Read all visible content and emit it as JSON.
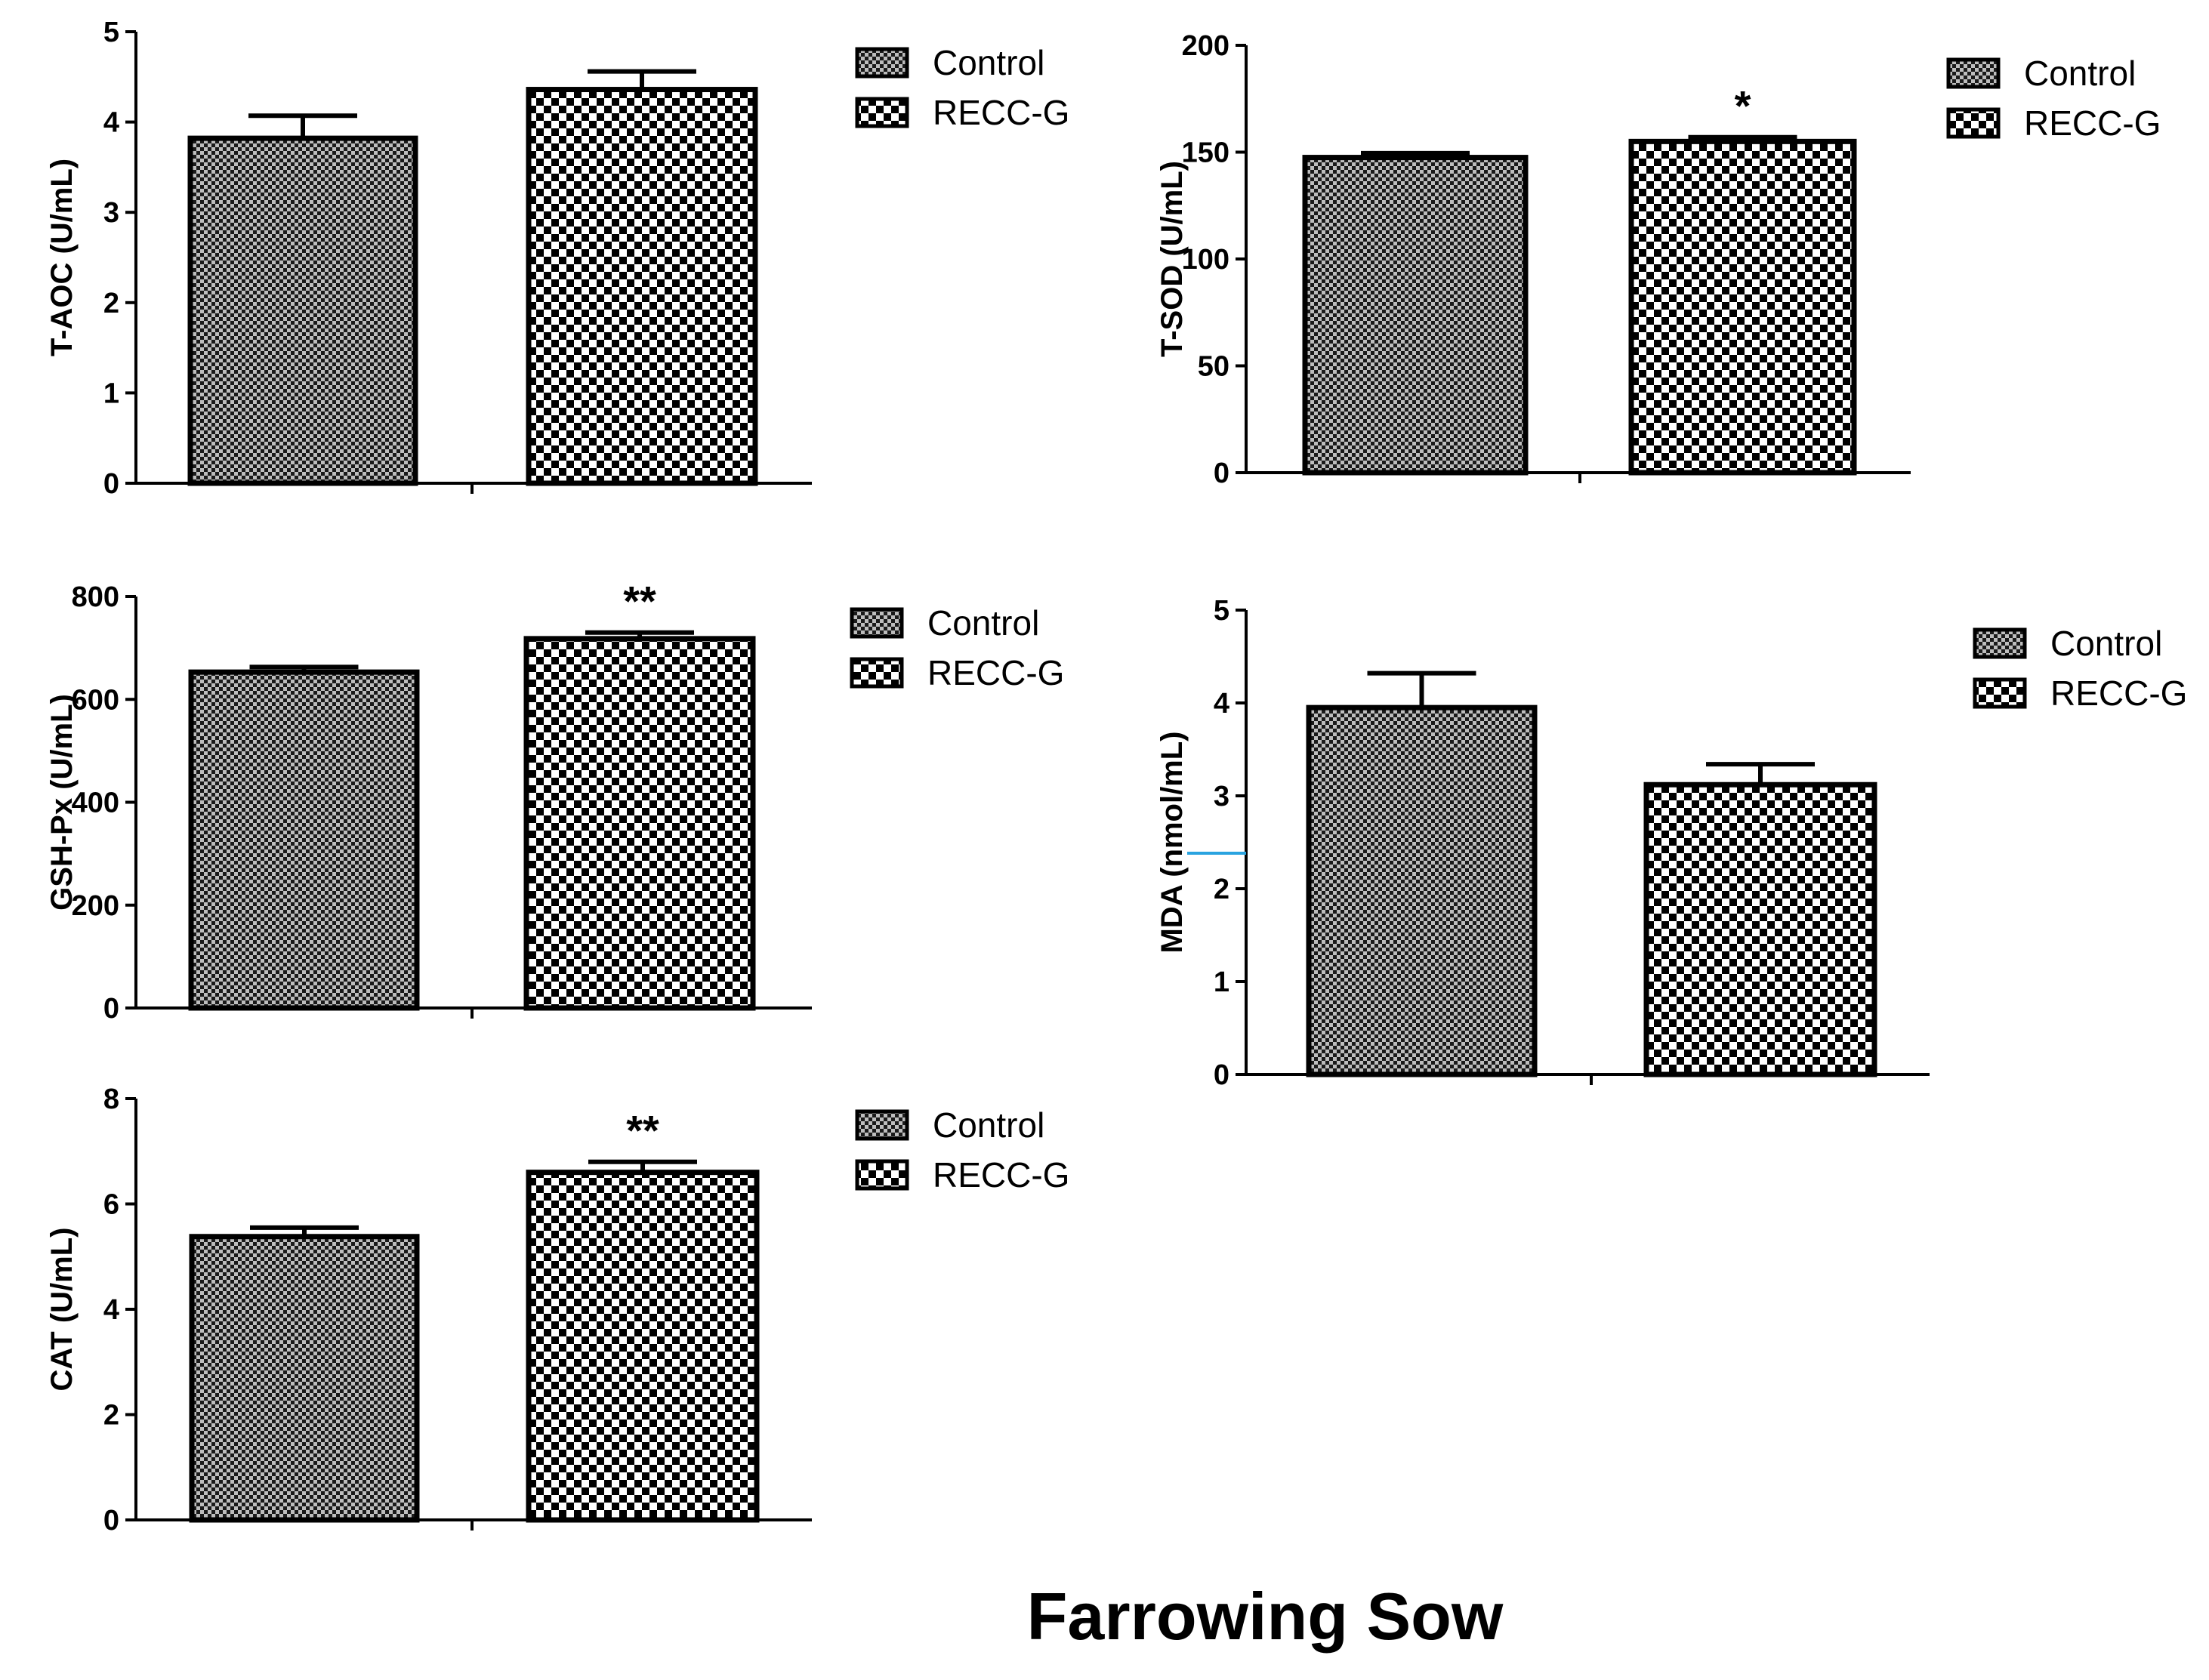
{
  "figure": {
    "title": "Farrowing Sow",
    "stray_mark_color": "#29a3e0"
  },
  "patterns": {
    "control": "fine-checker",
    "recc_g": "coarse-checker"
  },
  "chart_data": [
    {
      "id": "taoc",
      "type": "bar",
      "ylabel": "T-AOC (U/mL)",
      "ylim": [
        0,
        5
      ],
      "yticks": [
        "0",
        "1",
        "2",
        "3",
        "4",
        "5"
      ],
      "legend": [
        "Control",
        "RECC-G"
      ],
      "legend_position": "right",
      "series": [
        {
          "name": "Control",
          "value": 3.82,
          "error": 0.25,
          "sig": ""
        },
        {
          "name": "RECC-G",
          "value": 4.36,
          "error": 0.2,
          "sig": ""
        }
      ]
    },
    {
      "id": "tsod",
      "type": "bar",
      "ylabel": "T-SOD (U/mL)",
      "ylim": [
        0,
        200
      ],
      "yticks": [
        "0",
        "50",
        "100",
        "150",
        "200"
      ],
      "legend": [
        "Control",
        "RECC-G"
      ],
      "legend_position": "right",
      "series": [
        {
          "name": "Control",
          "value": 147.5,
          "error": 2,
          "sig": ""
        },
        {
          "name": "RECC-G",
          "value": 155,
          "error": 2,
          "sig": "*"
        }
      ]
    },
    {
      "id": "gshpx",
      "type": "bar",
      "ylabel": "GSH-Px (U/mL)",
      "ylim": [
        0,
        800
      ],
      "yticks": [
        "0",
        "200",
        "400",
        "600",
        "800"
      ],
      "legend": [
        "Control",
        "RECC-G"
      ],
      "legend_position": "right",
      "series": [
        {
          "name": "Control",
          "value": 653,
          "error": 10,
          "sig": ""
        },
        {
          "name": "RECC-G",
          "value": 718,
          "error": 12,
          "sig": "**"
        }
      ]
    },
    {
      "id": "mda",
      "type": "bar",
      "ylabel": "MDA (nmol/mL)",
      "ylim": [
        0,
        5
      ],
      "yticks": [
        "0",
        "1",
        "2",
        "3",
        "4",
        "5"
      ],
      "legend": [
        "Control",
        "RECC-G"
      ],
      "legend_position": "right",
      "series": [
        {
          "name": "Control",
          "value": 3.95,
          "error": 0.37,
          "sig": ""
        },
        {
          "name": "RECC-G",
          "value": 3.12,
          "error": 0.22,
          "sig": ""
        }
      ]
    },
    {
      "id": "cat",
      "type": "bar",
      "ylabel": "CAT (U/mL)",
      "ylim": [
        0,
        8
      ],
      "yticks": [
        "0",
        "2",
        "4",
        "6",
        "8"
      ],
      "legend": [
        "Control",
        "RECC-G"
      ],
      "legend_position": "right",
      "series": [
        {
          "name": "Control",
          "value": 5.38,
          "error": 0.17,
          "sig": ""
        },
        {
          "name": "RECC-G",
          "value": 6.6,
          "error": 0.2,
          "sig": "**"
        }
      ]
    }
  ]
}
